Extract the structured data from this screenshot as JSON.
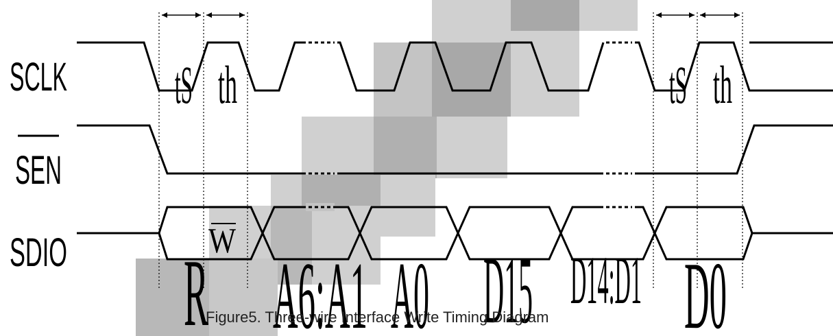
{
  "signals": {
    "sclk": "SCLK",
    "sen": "SEN",
    "sdio": "SDIO"
  },
  "timing": {
    "setup_left": "tS",
    "hold_left": "th",
    "setup_right": "tS",
    "hold_right": "th"
  },
  "sdio_fields": {
    "rw_r": "R",
    "rw_w": "W",
    "a6_a1": "A6:A1",
    "a0": "A0",
    "d15": "D15",
    "d14_d1": "D14:D1",
    "d0": "D0"
  },
  "caption": "Figure5. Three-wire Interface Write Timing Diagram"
}
